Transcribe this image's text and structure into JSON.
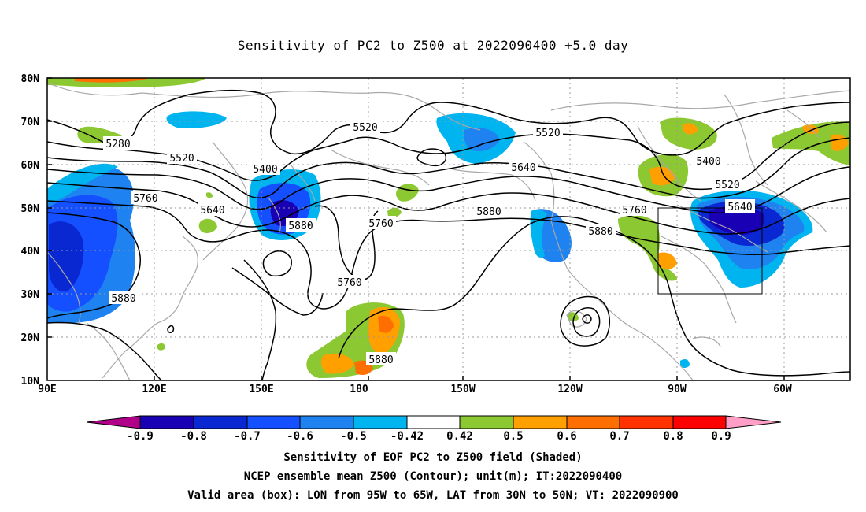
{
  "title": "Sensitivity of PC2 to Z500 at 2022090400 +5.0 day",
  "lat_labels": [
    "80N",
    "70N",
    "60N",
    "50N",
    "40N",
    "30N",
    "20N",
    "10N"
  ],
  "lon_labels": [
    "90E",
    "120E",
    "150E",
    "180",
    "150W",
    "120W",
    "90W",
    "60W"
  ],
  "contour_labels": [
    "5280",
    "5520",
    "5520",
    "5520",
    "5400",
    "5400",
    "5520",
    "5640",
    "5640",
    "5640",
    "5760",
    "5760",
    "5760",
    "5760",
    "5880",
    "5880",
    "5880",
    "5880",
    "5880"
  ],
  "colorbar": {
    "labels": [
      "-0.9",
      "-0.8",
      "-0.7",
      "-0.6",
      "-0.5",
      "-0.42",
      "0.42",
      "0.5",
      "0.6",
      "0.7",
      "0.8",
      "0.9"
    ],
    "colors": [
      "#b0008a",
      "#1a00b4",
      "#0a28d2",
      "#1450ff",
      "#1e82f0",
      "#00b4f0",
      "#ffffff",
      "#8cc832",
      "#ffa000",
      "#ff6e00",
      "#ff3200",
      "#ff0000",
      "#ff9ec6"
    ]
  },
  "box": {
    "lon_from": "95W",
    "lon_to": "65W",
    "lat_from": "30N",
    "lat_to": "50N"
  },
  "footer": {
    "line1": "Sensitivity of EOF PC2 to Z500 field (Shaded)",
    "line2": "NCEP ensemble mean Z500 (Contour); unit(m); IT:2022090400",
    "line3": "Valid area (box): LON from 95W to 65W, LAT from 30N to 50N; VT: 2022090900"
  }
}
